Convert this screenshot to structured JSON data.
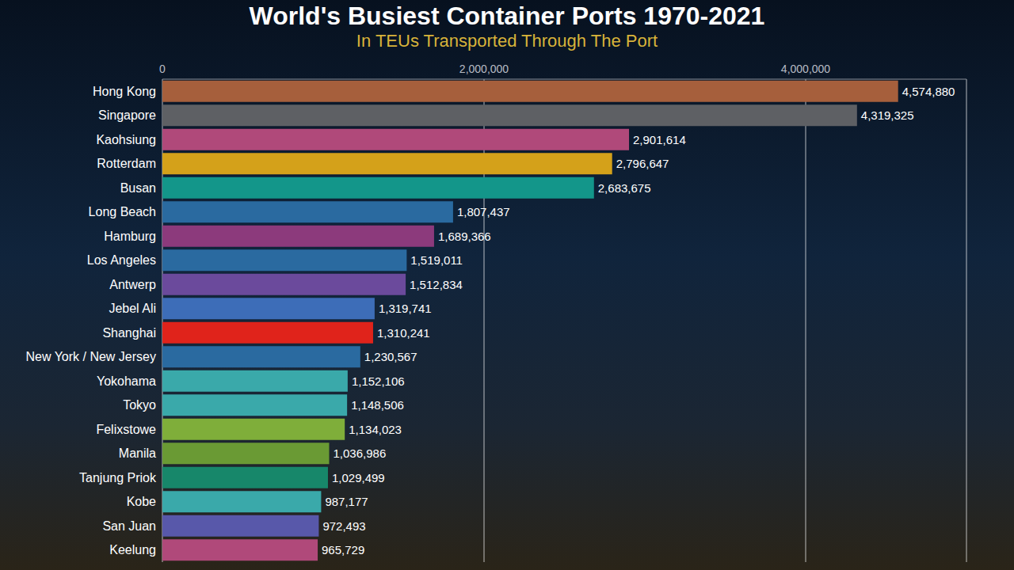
{
  "chart_data": {
    "type": "bar",
    "orientation": "horizontal",
    "title": "World's Busiest Container Ports 1970-2021",
    "subtitle": "In TEUs Transported Through The Port",
    "categories": [
      "Hong Kong",
      "Singapore",
      "Kaohsiung",
      "Rotterdam",
      "Busan",
      "Long Beach",
      "Hamburg",
      "Los Angeles",
      "Antwerp",
      "Jebel Ali",
      "Shanghai",
      "New York / New Jersey",
      "Yokohama",
      "Tokyo",
      "Felixstowe",
      "Manila",
      "Tanjung Priok",
      "Kobe",
      "San Juan",
      "Keelung"
    ],
    "values": [
      4574880,
      4319325,
      2901614,
      2796647,
      2683675,
      1807437,
      1689366,
      1519011,
      1512834,
      1319741,
      1310241,
      1230567,
      1152106,
      1148506,
      1134023,
      1036986,
      1029499,
      987177,
      972493,
      965729
    ],
    "value_labels": [
      "4,574,880",
      "4,319,325",
      "2,901,614",
      "2,796,647",
      "2,683,675",
      "1,807,437",
      "1,689,366",
      "1,519,011",
      "1,512,834",
      "1,319,741",
      "1,310,241",
      "1,230,567",
      "1,152,106",
      "1,148,506",
      "1,134,023",
      "1,036,986",
      "1,029,499",
      "987,177",
      "972,493",
      "965,729"
    ],
    "colors": [
      "#a65f3c",
      "#5e6064",
      "#b0497a",
      "#d4a11a",
      "#13968a",
      "#2a6aa0",
      "#8c3a7c",
      "#2a6aa0",
      "#6b4a9c",
      "#3d6db8",
      "#e0231b",
      "#2a6aa0",
      "#3aa9aa",
      "#3aa9aa",
      "#7fae3a",
      "#6a9a34",
      "#17876a",
      "#3aa9aa",
      "#5858aa",
      "#b0497a"
    ],
    "xlim": [
      0,
      5000000
    ],
    "xticks": [
      0,
      {
        "value": 2000000,
        "label": "2,000,000"
      },
      {
        "value": 4000000,
        "label": "4,000,000"
      }
    ],
    "grid": true,
    "data_labels": true
  }
}
